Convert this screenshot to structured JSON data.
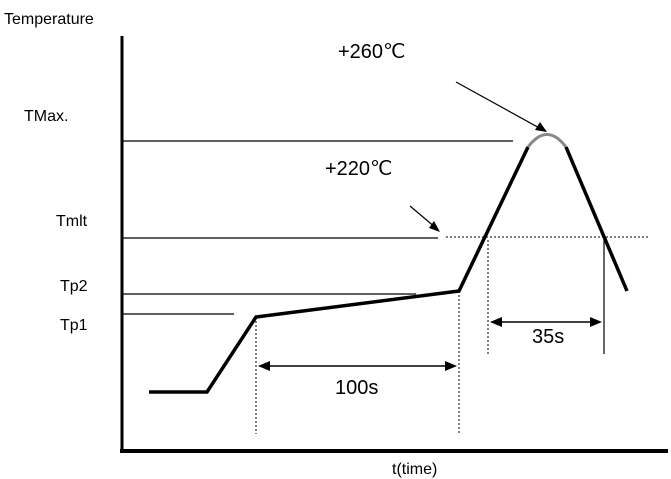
{
  "labels": {
    "y_axis": "Temperature",
    "x_axis": "t(time)",
    "tmax": "TMax.",
    "tmlt": "Tmlt",
    "tp2": "Tp2",
    "tp1": "Tp1",
    "peak_temp": "+260℃",
    "melt_temp": "+220℃",
    "preheat_duration": "100s",
    "above_melt_duration": "35s"
  },
  "colors": {
    "line": "#000000",
    "peak_tip": "#888888"
  }
}
